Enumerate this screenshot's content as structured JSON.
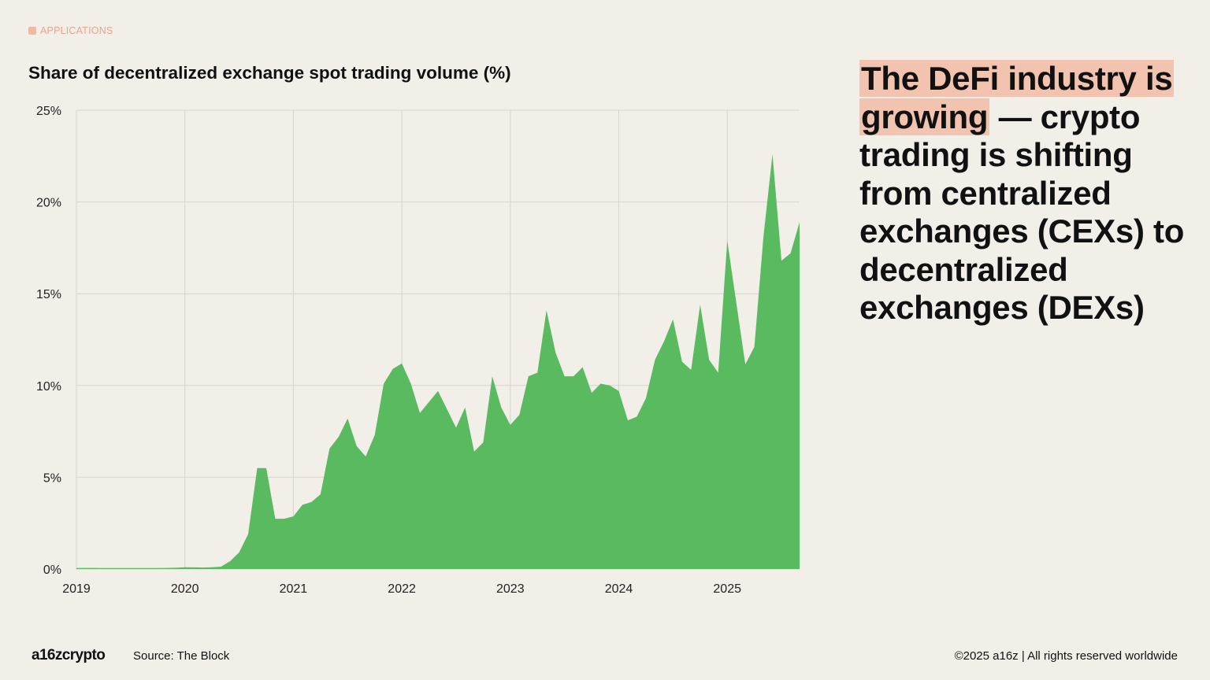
{
  "section_tag": "APPLICATIONS",
  "headline": {
    "highlight": "The DeFi industry is growing",
    "rest": " — crypto trading is shifting from centralized exchanges (CEXs) to decentralized exchanges (DEXs)"
  },
  "footer": {
    "logo": "a16zcrypto",
    "source": "Source: The Block",
    "copyright": "©2025 a16z | All rights reserved worldwide"
  },
  "colors": {
    "background": "#f1efe8",
    "area": "#5aba5f",
    "highlight": "#f2c4b0",
    "grid": "#d6d4cd"
  },
  "chart_data": {
    "type": "area",
    "title": "Share of decentralized exchange spot trading volume (%)",
    "xlabel": "",
    "ylabel": "",
    "ylim": [
      0,
      25
    ],
    "yticks": [
      0,
      5,
      10,
      15,
      20,
      25
    ],
    "ytick_labels": [
      "0%",
      "5%",
      "10%",
      "15%",
      "20%",
      "25%"
    ],
    "xtick_labels": [
      "2019",
      "2020",
      "2021",
      "2022",
      "2023",
      "2024",
      "2025"
    ],
    "grid": true,
    "x": [
      "2019-01",
      "2019-02",
      "2019-03",
      "2019-04",
      "2019-05",
      "2019-06",
      "2019-07",
      "2019-08",
      "2019-09",
      "2019-10",
      "2019-11",
      "2019-12",
      "2020-01",
      "2020-02",
      "2020-03",
      "2020-04",
      "2020-05",
      "2020-06",
      "2020-07",
      "2020-08",
      "2020-09",
      "2020-10",
      "2020-11",
      "2020-12",
      "2021-01",
      "2021-02",
      "2021-03",
      "2021-04",
      "2021-05",
      "2021-06",
      "2021-07",
      "2021-08",
      "2021-09",
      "2021-10",
      "2021-11",
      "2021-12",
      "2022-01",
      "2022-02",
      "2022-03",
      "2022-04",
      "2022-05",
      "2022-06",
      "2022-07",
      "2022-08",
      "2022-09",
      "2022-10",
      "2022-11",
      "2022-12",
      "2023-01",
      "2023-02",
      "2023-03",
      "2023-04",
      "2023-05",
      "2023-06",
      "2023-07",
      "2023-08",
      "2023-09",
      "2023-10",
      "2023-11",
      "2023-12",
      "2024-01",
      "2024-02",
      "2024-03",
      "2024-04",
      "2024-05",
      "2024-06",
      "2024-07",
      "2024-08",
      "2024-09",
      "2024-10",
      "2024-11",
      "2024-12",
      "2025-01",
      "2025-02",
      "2025-03",
      "2025-04",
      "2025-05",
      "2025-06",
      "2025-07",
      "2025-08",
      "2025-09"
    ],
    "values": [
      0.05,
      0.06,
      0.06,
      0.05,
      0.05,
      0.05,
      0.05,
      0.05,
      0.05,
      0.05,
      0.06,
      0.07,
      0.1,
      0.09,
      0.08,
      0.1,
      0.13,
      0.43,
      0.9,
      1.9,
      5.5,
      5.5,
      2.74,
      2.74,
      2.87,
      3.5,
      3.65,
      4.07,
      6.56,
      7.2,
      8.2,
      6.7,
      6.13,
      7.3,
      10.1,
      10.9,
      11.2,
      10.1,
      8.5,
      9.1,
      9.7,
      8.7,
      7.7,
      8.8,
      6.4,
      6.9,
      10.5,
      8.8,
      7.85,
      8.4,
      10.5,
      10.7,
      14.1,
      11.8,
      10.5,
      10.5,
      11.0,
      9.6,
      10.1,
      10.0,
      9.7,
      8.1,
      8.3,
      9.3,
      11.4,
      12.4,
      13.6,
      11.3,
      10.85,
      14.4,
      11.4,
      10.7,
      17.9,
      14.5,
      11.15,
      12.1,
      18.1,
      22.6,
      16.8,
      17.2,
      18.9
    ]
  }
}
